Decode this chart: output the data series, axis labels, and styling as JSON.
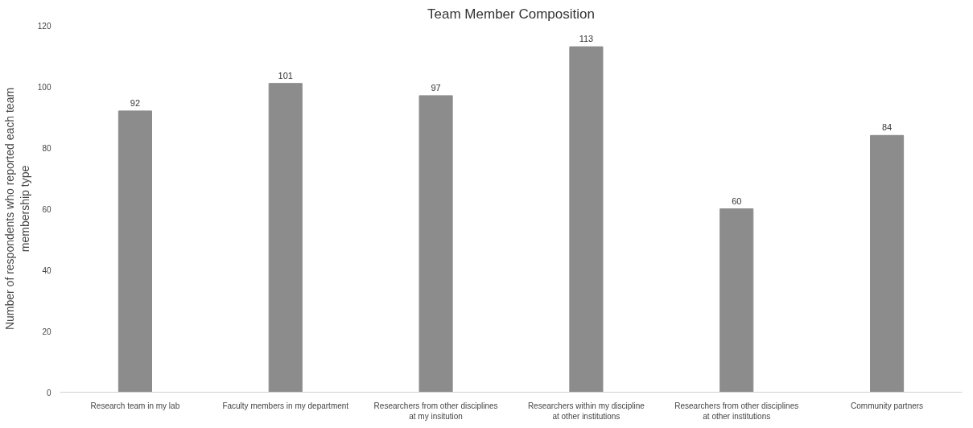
{
  "chart_data": {
    "type": "bar",
    "title": "Team Member Composition",
    "ylabel": "Number of respondents who reported each team membership type",
    "categories": [
      "Research team in my lab",
      "Faculty members in my department",
      "Researchers from other disciplines at my insitution",
      "Researchers within my discipline at other institutions",
      "Researchers from other disciplines at other institutions",
      "Community partners"
    ],
    "values": [
      92,
      101,
      97,
      113,
      60,
      84
    ],
    "color": "#8c8c8c",
    "ylim": [
      0,
      120
    ],
    "yticks": [
      0,
      20,
      40,
      60,
      80,
      100,
      120
    ],
    "data_labels": true,
    "grid": false
  }
}
